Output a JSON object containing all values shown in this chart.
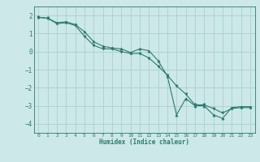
{
  "xlabel": "Humidex (Indice chaleur)",
  "background_color": "#cce8e8",
  "grid_color": "#aacfcf",
  "line_color": "#2d7a6e",
  "xlim": [
    -0.5,
    23.5
  ],
  "ylim": [
    -4.5,
    2.5
  ],
  "yticks": [
    -4,
    -3,
    -2,
    -1,
    0,
    1,
    2
  ],
  "xticks": [
    0,
    1,
    2,
    3,
    4,
    5,
    6,
    7,
    8,
    9,
    10,
    11,
    12,
    13,
    14,
    15,
    16,
    17,
    18,
    19,
    20,
    21,
    22,
    23
  ],
  "line1_x": [
    0,
    1,
    2,
    3,
    4,
    5,
    6,
    7,
    8,
    9,
    10,
    11,
    12,
    13,
    14,
    15,
    16,
    17,
    18,
    19,
    20,
    21,
    22,
    23
  ],
  "line1_y": [
    1.9,
    1.85,
    1.6,
    1.65,
    1.5,
    1.1,
    0.55,
    0.3,
    0.2,
    0.15,
    -0.05,
    0.15,
    0.05,
    -0.5,
    -1.35,
    -3.5,
    -2.6,
    -3.0,
    -3.0,
    -3.5,
    -3.7,
    -3.1,
    -3.05,
    -3.05
  ],
  "line2_x": [
    0,
    1,
    2,
    3,
    4,
    5,
    6,
    7,
    8,
    9,
    10,
    11,
    12,
    13,
    14,
    15,
    16,
    17,
    18,
    19,
    20,
    21,
    22,
    23
  ],
  "line2_y": [
    1.9,
    1.85,
    1.55,
    1.6,
    1.45,
    0.85,
    0.35,
    0.15,
    0.15,
    0.0,
    -0.1,
    -0.1,
    -0.35,
    -0.8,
    -1.3,
    -1.9,
    -2.35,
    -2.95,
    -2.95,
    -3.15,
    -3.4,
    -3.15,
    -3.1,
    -3.1
  ]
}
